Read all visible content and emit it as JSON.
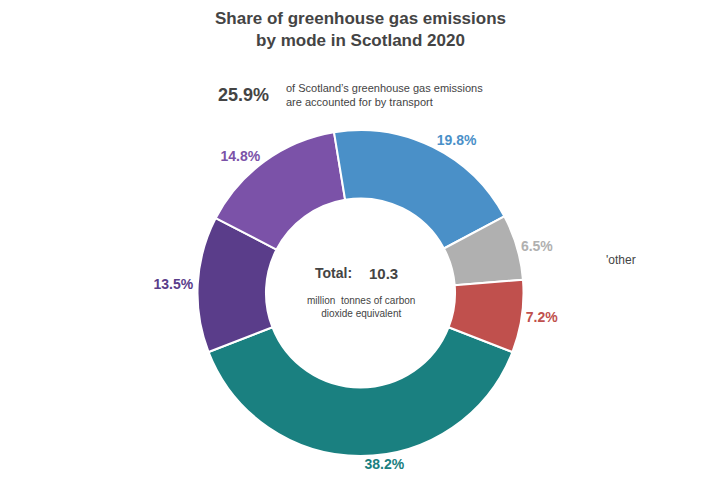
{
  "chart_data": {
    "type": "pie",
    "title": "Share of greenhouse gas emissions\nby mode in Scotland 2020",
    "subtitle": [
      "25.9%",
      "of Scotland’s greenhouse gas emissions\nare accounted for by transport"
    ],
    "values": [
      38.2,
      13.5,
      14.8,
      19.8,
      6.5,
      7.2
    ],
    "value_labels": [
      "38.2%",
      "13.5%",
      "14.8%",
      "19.8%",
      "6.5%",
      "7.2%"
    ],
    "colors": [
      "#1a8080",
      "#5a3d8a",
      "#7b52a8",
      "#4a90c8",
      "#b0b0b0",
      "#c0504d"
    ],
    "data_labels": true,
    "annotations": [
      "Total:",
      "10.3",
      "million  tonnes of carbon\ndioxide equivalent",
      "'other"
    ]
  }
}
